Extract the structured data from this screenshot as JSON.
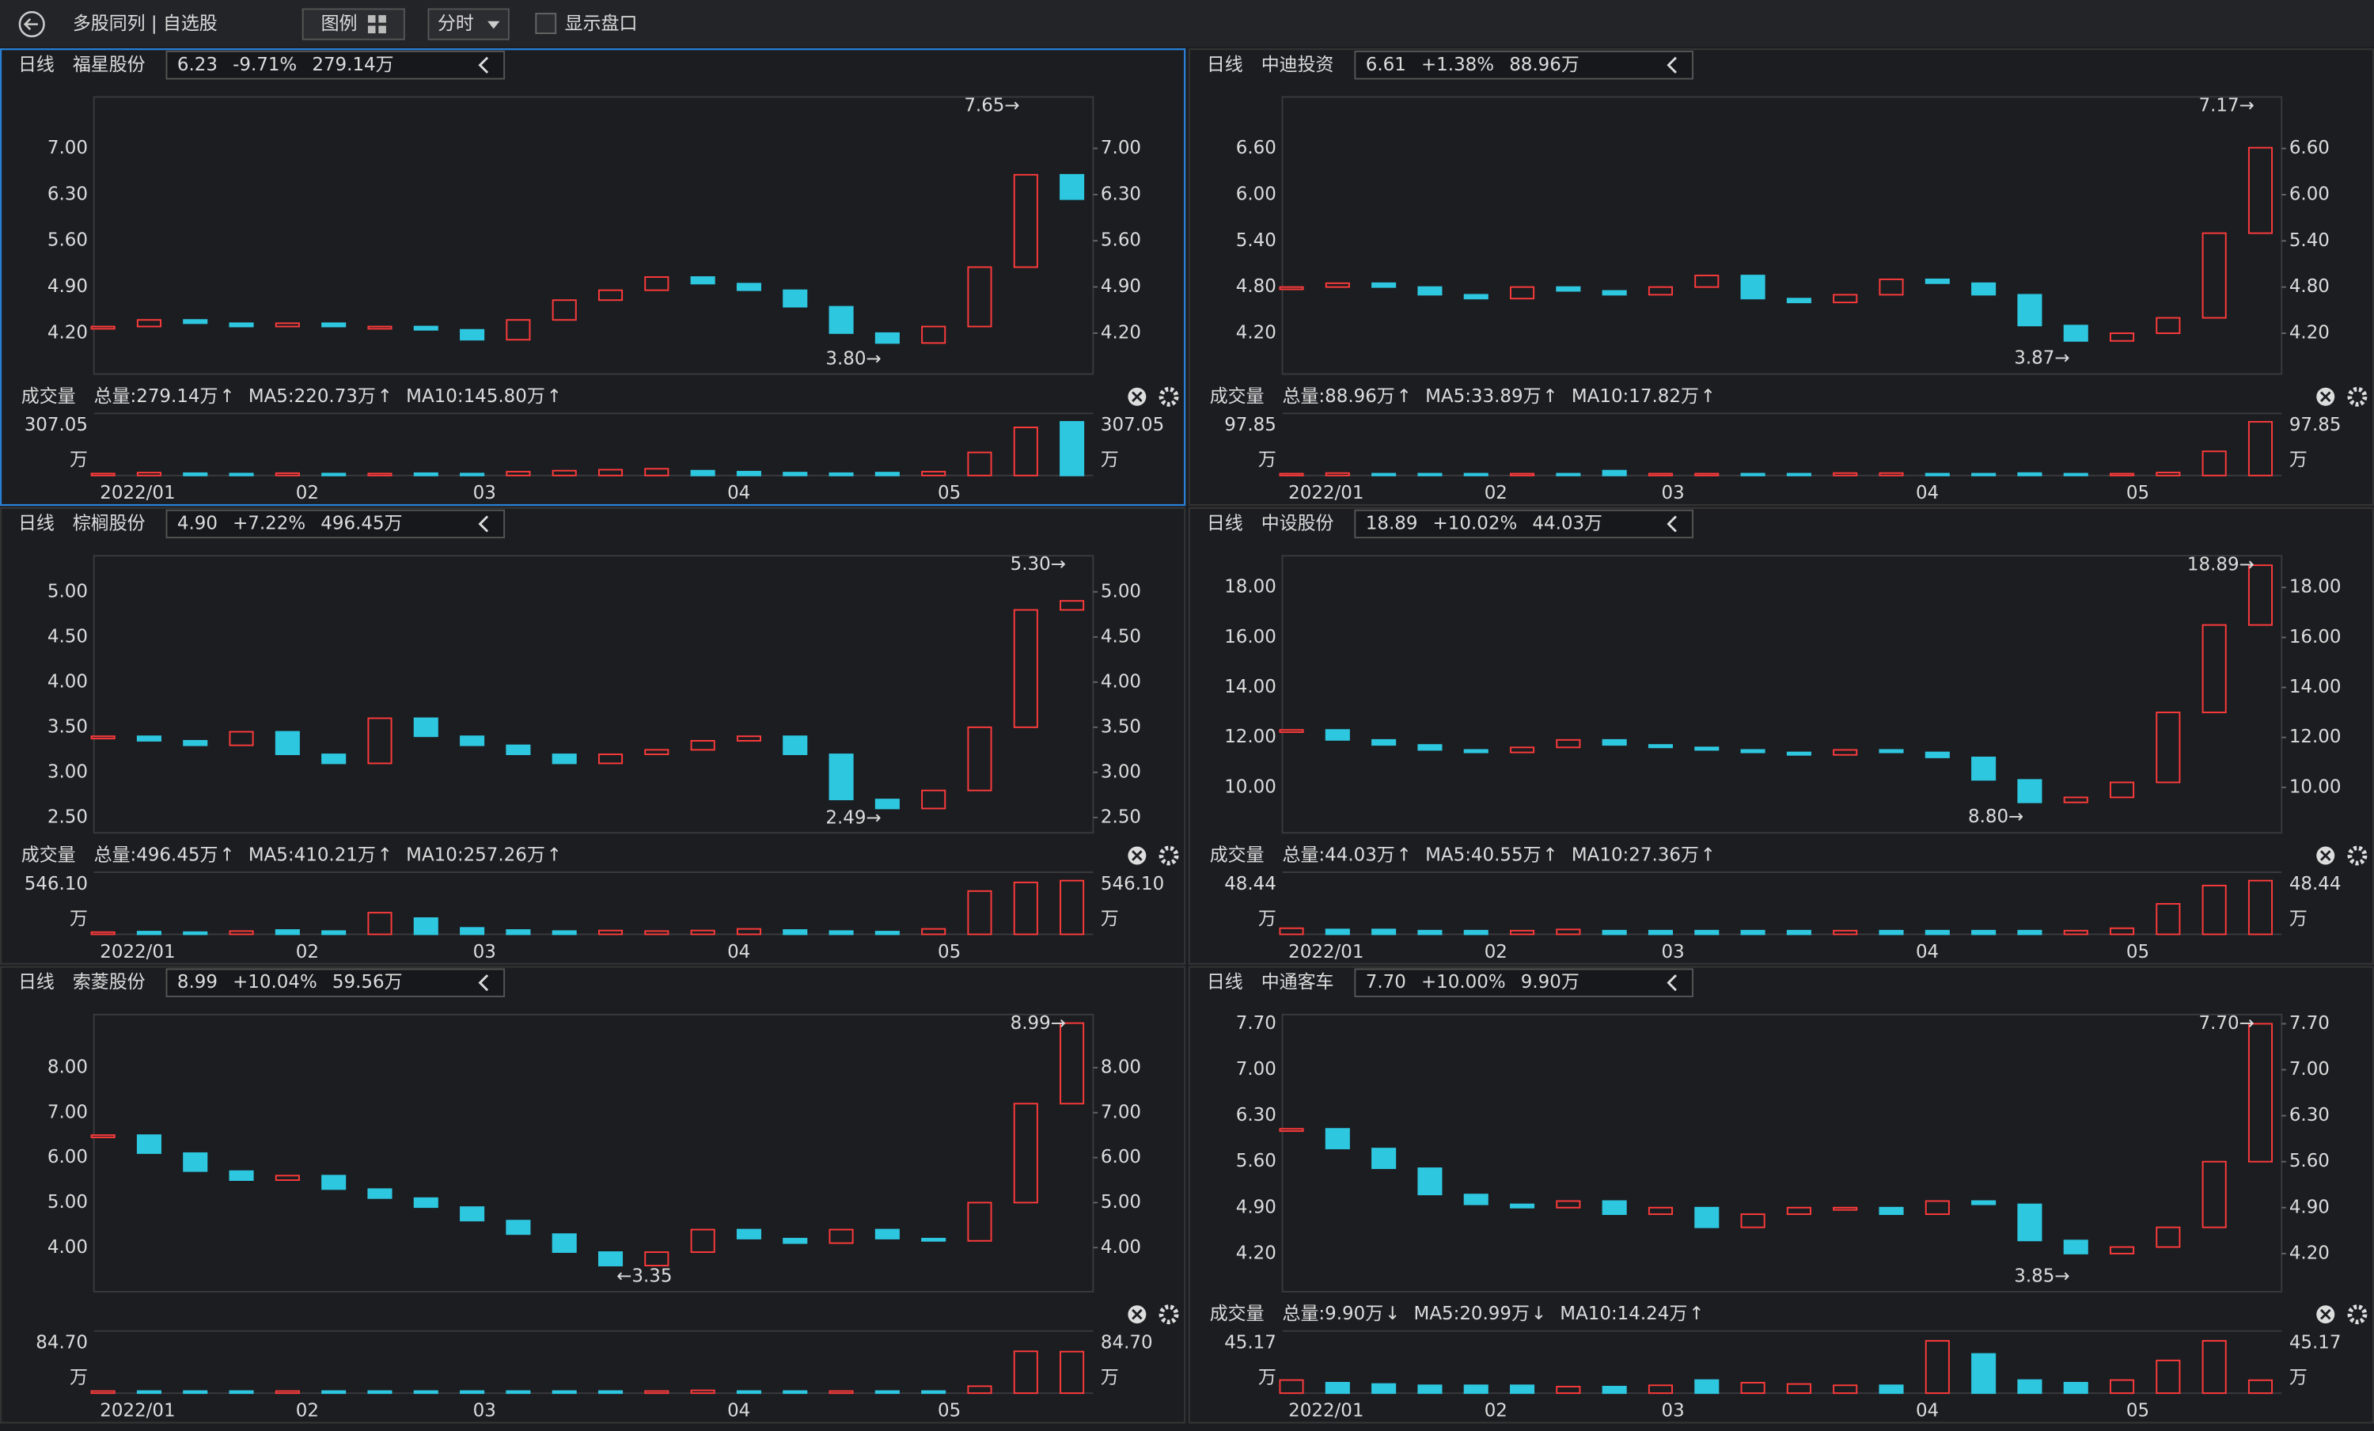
{
  "toolbar": {
    "title": "多股同列 | 自选股",
    "legend_btn": "图例",
    "period": "分时",
    "show_quote": "显示盘口"
  },
  "panels": [
    {
      "period": "日线",
      "name": "福星股份",
      "price": "6.23",
      "change": "-9.71%",
      "volume": "279.14万",
      "quote_color": "#2ecc40",
      "chart": {
        "type": "candlestick",
        "ylim": [
          3.58,
          7.78
        ],
        "yticks": [
          {
            "value": 7,
            "label": "7.00"
          },
          {
            "value": 6.3,
            "label": "6.30"
          },
          {
            "value": 5.6,
            "label": "5.60"
          },
          {
            "value": 4.9,
            "label": "4.90"
          },
          {
            "value": 4.2,
            "label": "4.20"
          }
        ],
        "closes": [
          4.3,
          4.4,
          4.35,
          4.3,
          4.35,
          4.3,
          4.3,
          4.25,
          4.1,
          4.4,
          4.7,
          4.85,
          5.05,
          4.95,
          4.85,
          4.6,
          4.2,
          4.05,
          4.3,
          5.2,
          6.6,
          6.23
        ],
        "annotations": [
          {
            "text": "7.65→",
            "value": 7.65
          },
          {
            "text": "3.80→",
            "value": 3.8
          }
        ],
        "dates": [
          "2022/01",
          "02",
          "03",
          "04",
          "05"
        ],
        "volume": {
          "title": "成交量",
          "total": "总量:279.14万",
          "total_arrow": "↑",
          "total_color": "#2ecc40",
          "ma5": "MA5:220.73万",
          "ma5_arrow": "↑",
          "ma10": "MA10:145.80万",
          "ma10_arrow": "↑",
          "values": [
            10,
            15,
            12,
            10,
            12,
            10,
            10,
            12,
            10,
            20,
            25,
            30,
            35,
            25,
            20,
            15,
            12,
            15,
            20,
            120,
            250,
            279.14
          ],
          "ylim": [
            0,
            307.05
          ],
          "yticks": [
            307.05
          ],
          "unit": "万"
        }
      }
    },
    {
      "period": "日线",
      "name": "中迪投资",
      "price": "6.61",
      "change": "+1.38%",
      "volume": "88.96万",
      "quote_color": "#ff3b3b",
      "chart": {
        "type": "candlestick",
        "ylim": [
          3.67,
          7.27
        ],
        "yticks": [
          {
            "value": 6.6,
            "label": "6.60"
          },
          {
            "value": 6,
            "label": "6.00"
          },
          {
            "value": 5.4,
            "label": "5.40"
          },
          {
            "value": 4.8,
            "label": "4.80"
          },
          {
            "value": 4.2,
            "label": "4.20"
          }
        ],
        "closes": [
          4.8,
          4.85,
          4.8,
          4.7,
          4.65,
          4.8,
          4.75,
          4.7,
          4.8,
          4.95,
          4.65,
          4.6,
          4.7,
          4.9,
          4.85,
          4.7,
          4.3,
          4.1,
          4.2,
          4.4,
          5.5,
          6.61
        ],
        "annotations": [
          {
            "text": "7.17→",
            "value": 7.17
          },
          {
            "text": "3.87→",
            "value": 3.87
          }
        ],
        "dates": [
          "2022/01",
          "02",
          "03",
          "04",
          "05"
        ],
        "volume": {
          "title": "成交量",
          "total": "总量:88.96万",
          "total_arrow": "↑",
          "total_color": "#2ecc40",
          "ma5": "MA5:33.89万",
          "ma5_arrow": "↑",
          "ma10": "MA10:17.82万",
          "ma10_arrow": "↑",
          "values": [
            3,
            4,
            3,
            3,
            3,
            3,
            3,
            8,
            3,
            3,
            3,
            3,
            4,
            4,
            3,
            3,
            4,
            3,
            3,
            5,
            40,
            88.96
          ],
          "ylim": [
            0,
            97.85
          ],
          "yticks": [
            97.85
          ],
          "unit": "万"
        }
      }
    },
    {
      "period": "日线",
      "name": "棕榈股份",
      "price": "4.90",
      "change": "+7.22%",
      "volume": "496.45万",
      "quote_color": "#ff3b3b",
      "chart": {
        "type": "candlestick",
        "ylim": [
          2.33,
          5.4
        ],
        "yticks": [
          {
            "value": 5,
            "label": "5.00"
          },
          {
            "value": 4.5,
            "label": "4.50"
          },
          {
            "value": 4,
            "label": "4.00"
          },
          {
            "value": 3.5,
            "label": "3.50"
          },
          {
            "value": 3,
            "label": "3.00"
          },
          {
            "value": 2.5,
            "label": "2.50"
          }
        ],
        "closes": [
          3.4,
          3.35,
          3.3,
          3.45,
          3.2,
          3.1,
          3.6,
          3.4,
          3.3,
          3.2,
          3.1,
          3.2,
          3.25,
          3.35,
          3.4,
          3.2,
          2.7,
          2.6,
          2.8,
          3.5,
          4.8,
          4.9
        ],
        "annotations": [
          {
            "text": "5.30→",
            "value": 5.3
          },
          {
            "text": "2.49→",
            "value": 2.49
          }
        ],
        "dates": [
          "2022/01",
          "02",
          "03",
          "04",
          "05"
        ],
        "volume": {
          "title": "成交量",
          "total": "总量:496.45万",
          "total_arrow": "↑",
          "total_color": "#ff3b3b",
          "ma5": "MA5:410.21万",
          "ma5_arrow": "↑",
          "ma10": "MA10:257.26万",
          "ma10_arrow": "↑",
          "values": [
            20,
            25,
            20,
            30,
            40,
            30,
            200,
            150,
            60,
            40,
            30,
            35,
            30,
            35,
            50,
            40,
            30,
            25,
            50,
            400,
            480,
            496.45
          ],
          "ylim": [
            0,
            546.1
          ],
          "yticks": [
            {
              "value": 546.1,
              "label": "546.10"
            }
          ],
          "unit": "万"
        }
      }
    },
    {
      "period": "日线",
      "name": "中设股份",
      "price": "18.89",
      "change": "+10.02%",
      "volume": "44.03万",
      "quote_color": "#ff3b3b",
      "chart": {
        "type": "candlestick",
        "ylim": [
          8.18,
          19.27
        ],
        "yticks": [
          {
            "value": 18,
            "label": "18.00"
          },
          {
            "value": 16,
            "label": "16.00"
          },
          {
            "value": 14,
            "label": "14.00"
          },
          {
            "value": 12,
            "label": "12.00"
          },
          {
            "value": 10,
            "label": "10.00"
          }
        ],
        "closes": [
          12.3,
          11.9,
          11.7,
          11.5,
          11.4,
          11.6,
          11.9,
          11.7,
          11.6,
          11.5,
          11.4,
          11.3,
          11.5,
          11.4,
          11.2,
          10.3,
          9.4,
          9.6,
          10.2,
          13.0,
          16.5,
          18.89
        ],
        "annotations": [
          {
            "text": "18.89→",
            "value": 18.89
          },
          {
            "text": "8.80→",
            "value": 8.8
          }
        ],
        "dates": [
          "2022/01",
          "02",
          "03",
          "04",
          "05"
        ],
        "volume": {
          "title": "成交量",
          "total": "总量:44.03万",
          "total_arrow": "↑",
          "total_color": "#ff3b3b",
          "ma5": "MA5:40.55万",
          "ma5_arrow": "↑",
          "ma10": "MA10:27.36万",
          "ma10_arrow": "↑",
          "values": [
            5,
            4,
            4,
            3,
            3,
            3,
            4,
            3,
            3,
            3,
            3,
            3,
            3,
            3,
            3,
            3,
            3,
            3,
            5,
            25,
            40,
            44.03
          ],
          "ylim": [
            0,
            48.44
          ],
          "yticks": [
            48.44
          ],
          "unit": "万"
        }
      }
    },
    {
      "period": "日线",
      "name": "索菱股份",
      "price": "8.99",
      "change": "+10.04%",
      "volume": "59.56万",
      "quote_color": "#ff3b3b",
      "chart": {
        "type": "candlestick",
        "ylim": [
          3.02,
          9.18
        ],
        "yticks": [
          {
            "value": 8,
            "label": "8.00"
          },
          {
            "value": 7,
            "label": "7.00"
          },
          {
            "value": 6,
            "label": "6.00"
          },
          {
            "value": 5,
            "label": "5.00"
          },
          {
            "value": 4,
            "label": "4.00"
          }
        ],
        "closes": [
          6.5,
          6.1,
          5.7,
          5.5,
          5.6,
          5.3,
          5.1,
          4.9,
          4.6,
          4.3,
          3.9,
          3.6,
          3.9,
          4.4,
          4.2,
          4.1,
          4.4,
          4.2,
          4.15,
          5.0,
          7.2,
          8.99
        ],
        "annotations": [
          {
            "text": "8.99→",
            "value": 8.99
          },
          {
            "text": "←3.35",
            "value": 3.35
          }
        ],
        "dates": [
          "2022/01",
          "02",
          "03",
          "04",
          "05"
        ],
        "volume": {
          "values": [
            3,
            3,
            3,
            3,
            3,
            3,
            3,
            3,
            3,
            3,
            3,
            3,
            3,
            4,
            3,
            3,
            3,
            3,
            3,
            10,
            60,
            59.56
          ],
          "ylim": [
            0,
            84.7
          ],
          "yticks": [
            {
              "value": 84.7,
              "label": "84.70"
            }
          ],
          "unit": "万"
        }
      }
    },
    {
      "period": "日线",
      "name": "中通客车",
      "price": "7.70",
      "change": "+10.00%",
      "volume": "9.90万",
      "quote_color": "#ff3b3b",
      "chart": {
        "type": "candlestick",
        "ylim": [
          3.62,
          7.84
        ],
        "yticks": [
          {
            "value": 7.7,
            "label": "7.70"
          },
          {
            "value": 7,
            "label": "7.00"
          },
          {
            "value": 6.3,
            "label": "6.30"
          },
          {
            "value": 5.6,
            "label": "5.60"
          },
          {
            "value": 4.9,
            "label": "4.90"
          },
          {
            "value": 4.2,
            "label": "4.20"
          }
        ],
        "closes": [
          6.1,
          5.8,
          5.5,
          5.1,
          4.95,
          4.9,
          5.0,
          4.8,
          4.9,
          4.6,
          4.8,
          4.9,
          4.9,
          4.8,
          5.0,
          4.95,
          4.4,
          4.2,
          4.3,
          4.6,
          5.6,
          7.7
        ],
        "annotations": [
          {
            "text": "7.70→",
            "value": 7.7
          },
          {
            "text": "3.85→",
            "value": 3.85
          }
        ],
        "dates": [
          "2022/01",
          "02",
          "03",
          "04",
          "05"
        ],
        "volume": {
          "title": "成交量",
          "total": "总量:9.90万",
          "total_arrow": "↓",
          "total_color": "#ff3b3b",
          "ma5": "MA5:20.99万",
          "ma5_arrow": "↓",
          "ma10": "MA10:14.24万",
          "ma10_arrow": "↑",
          "values": [
            10,
            8,
            7,
            6,
            6,
            6,
            5,
            5,
            6,
            10,
            8,
            7,
            6,
            6,
            40,
            30,
            10,
            8,
            10,
            25,
            40,
            9.9
          ],
          "ylim": [
            0,
            45.17
          ],
          "yticks": [
            45.17
          ],
          "unit": "万"
        }
      }
    }
  ]
}
